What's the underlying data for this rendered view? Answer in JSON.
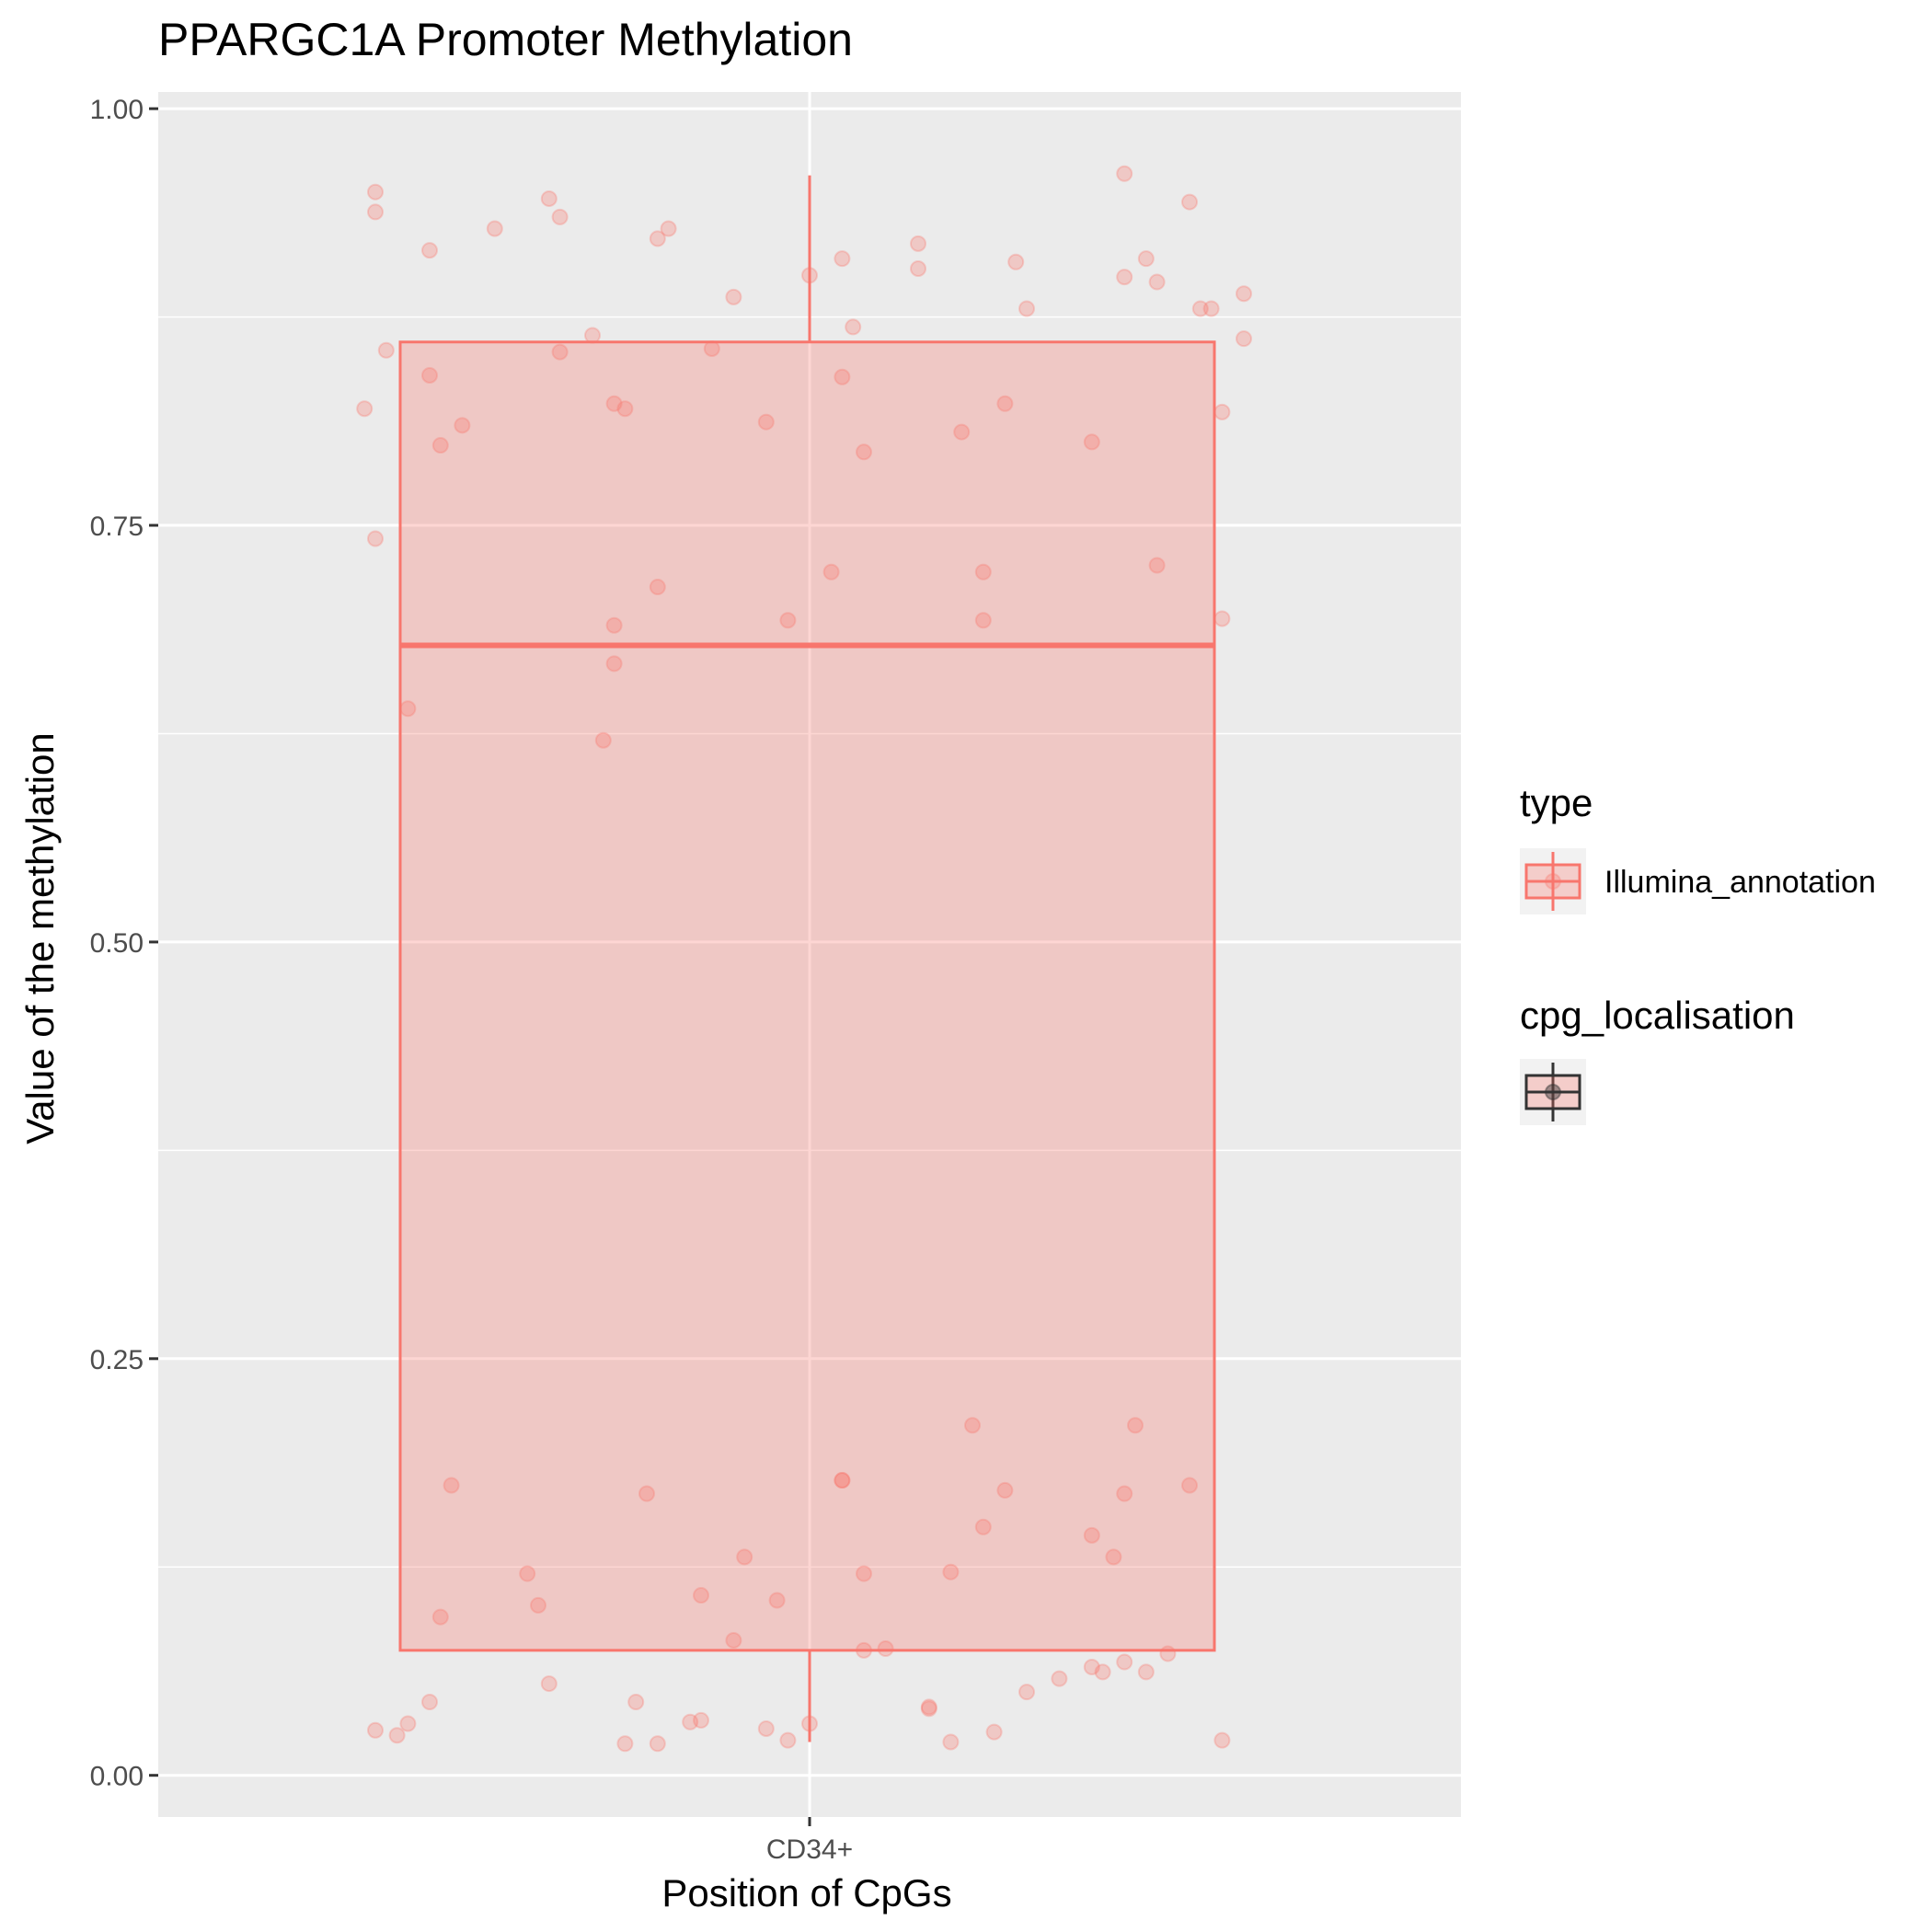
{
  "chart_data": {
    "type": "boxplot",
    "title": "PPARGC1A Promoter Methylation",
    "xlabel": "Position of CpGs",
    "ylabel": "Value of the methylation",
    "categories": [
      "CD34+"
    ],
    "ylim": [
      -0.025,
      1.01
    ],
    "yticks": [
      0.0,
      0.25,
      0.5,
      0.75,
      1.0
    ],
    "ytick_labels": [
      "0.00",
      "0.25",
      "0.50",
      "0.75",
      "1.00"
    ],
    "grid": true,
    "box": {
      "category": "CD34+",
      "whisker_low": 0.02,
      "q1": 0.075,
      "median": 0.678,
      "q3": 0.86,
      "whisker_high": 0.96,
      "color": "#F8766D",
      "fill": "#F8766D"
    },
    "points": [
      {
        "x": -0.4,
        "y": 0.95
      },
      {
        "x": -0.4,
        "y": 0.938
      },
      {
        "x": -0.35,
        "y": 0.915
      },
      {
        "x": -0.29,
        "y": 0.928
      },
      {
        "x": -0.24,
        "y": 0.946
      },
      {
        "x": -0.23,
        "y": 0.935
      },
      {
        "x": -0.14,
        "y": 0.922
      },
      {
        "x": -0.13,
        "y": 0.928
      },
      {
        "x": -0.07,
        "y": 0.887
      },
      {
        "x": 0.0,
        "y": 0.9
      },
      {
        "x": 0.03,
        "y": 0.91
      },
      {
        "x": 0.1,
        "y": 0.919
      },
      {
        "x": 0.1,
        "y": 0.904
      },
      {
        "x": 0.19,
        "y": 0.908
      },
      {
        "x": 0.29,
        "y": 0.899
      },
      {
        "x": 0.29,
        "y": 0.961
      },
      {
        "x": 0.31,
        "y": 0.91
      },
      {
        "x": 0.32,
        "y": 0.896
      },
      {
        "x": 0.35,
        "y": 0.944
      },
      {
        "x": 0.36,
        "y": 0.88
      },
      {
        "x": 0.37,
        "y": 0.88
      },
      {
        "x": 0.4,
        "y": 0.889
      },
      {
        "x": 0.4,
        "y": 0.862
      },
      {
        "x": 0.04,
        "y": 0.869
      },
      {
        "x": 0.2,
        "y": 0.88
      },
      {
        "x": -0.39,
        "y": 0.855
      },
      {
        "x": -0.23,
        "y": 0.854
      },
      {
        "x": -0.2,
        "y": 0.864
      },
      {
        "x": -0.09,
        "y": 0.856
      },
      {
        "x": -0.41,
        "y": 0.82
      },
      {
        "x": -0.35,
        "y": 0.84
      },
      {
        "x": -0.32,
        "y": 0.81
      },
      {
        "x": -0.34,
        "y": 0.798
      },
      {
        "x": -0.18,
        "y": 0.823
      },
      {
        "x": -0.17,
        "y": 0.82
      },
      {
        "x": -0.04,
        "y": 0.812
      },
      {
        "x": 0.03,
        "y": 0.839
      },
      {
        "x": 0.05,
        "y": 0.794
      },
      {
        "x": 0.14,
        "y": 0.806
      },
      {
        "x": 0.18,
        "y": 0.823
      },
      {
        "x": 0.26,
        "y": 0.8
      },
      {
        "x": 0.38,
        "y": 0.818
      },
      {
        "x": -0.4,
        "y": 0.742
      },
      {
        "x": -0.14,
        "y": 0.713
      },
      {
        "x": -0.18,
        "y": 0.69
      },
      {
        "x": -0.02,
        "y": 0.693
      },
      {
        "x": 0.02,
        "y": 0.722
      },
      {
        "x": 0.16,
        "y": 0.722
      },
      {
        "x": 0.16,
        "y": 0.693
      },
      {
        "x": 0.32,
        "y": 0.726
      },
      {
        "x": 0.38,
        "y": 0.694
      },
      {
        "x": -0.18,
        "y": 0.667
      },
      {
        "x": -0.37,
        "y": 0.64
      },
      {
        "x": -0.19,
        "y": 0.621
      },
      {
        "x": 0.15,
        "y": 0.21
      },
      {
        "x": 0.3,
        "y": 0.21
      },
      {
        "x": -0.33,
        "y": 0.174
      },
      {
        "x": -0.15,
        "y": 0.169
      },
      {
        "x": 0.03,
        "y": 0.177
      },
      {
        "x": 0.03,
        "y": 0.177
      },
      {
        "x": 0.18,
        "y": 0.171
      },
      {
        "x": 0.29,
        "y": 0.169
      },
      {
        "x": 0.35,
        "y": 0.174
      },
      {
        "x": 0.16,
        "y": 0.149
      },
      {
        "x": 0.26,
        "y": 0.144
      },
      {
        "x": 0.28,
        "y": 0.131
      },
      {
        "x": -0.06,
        "y": 0.131
      },
      {
        "x": -0.26,
        "y": 0.121
      },
      {
        "x": 0.05,
        "y": 0.121
      },
      {
        "x": 0.13,
        "y": 0.122
      },
      {
        "x": -0.1,
        "y": 0.108
      },
      {
        "x": -0.03,
        "y": 0.105
      },
      {
        "x": -0.25,
        "y": 0.102
      },
      {
        "x": -0.34,
        "y": 0.095
      },
      {
        "x": -0.07,
        "y": 0.081
      },
      {
        "x": 0.05,
        "y": 0.075
      },
      {
        "x": 0.07,
        "y": 0.076
      },
      {
        "x": 0.33,
        "y": 0.073
      },
      {
        "x": 0.26,
        "y": 0.065
      },
      {
        "x": 0.31,
        "y": 0.062
      },
      {
        "x": 0.27,
        "y": 0.062
      },
      {
        "x": 0.29,
        "y": 0.068
      },
      {
        "x": -0.24,
        "y": 0.055
      },
      {
        "x": 0.23,
        "y": 0.058
      },
      {
        "x": 0.2,
        "y": 0.05
      },
      {
        "x": -0.35,
        "y": 0.044
      },
      {
        "x": -0.16,
        "y": 0.044
      },
      {
        "x": 0.11,
        "y": 0.041
      },
      {
        "x": 0.11,
        "y": 0.04
      },
      {
        "x": -0.37,
        "y": 0.031
      },
      {
        "x": -0.4,
        "y": 0.027
      },
      {
        "x": -0.38,
        "y": 0.024
      },
      {
        "x": -0.11,
        "y": 0.032
      },
      {
        "x": -0.1,
        "y": 0.033
      },
      {
        "x": -0.04,
        "y": 0.028
      },
      {
        "x": 0.0,
        "y": 0.031
      },
      {
        "x": 0.17,
        "y": 0.026
      },
      {
        "x": -0.17,
        "y": 0.019
      },
      {
        "x": -0.14,
        "y": 0.019
      },
      {
        "x": -0.02,
        "y": 0.021
      },
      {
        "x": 0.13,
        "y": 0.02
      },
      {
        "x": 0.38,
        "y": 0.021
      }
    ],
    "legend": {
      "placement": "right",
      "groups": [
        {
          "title": "type",
          "entries": [
            {
              "label": "Illumina_annotation",
              "color": "#F8766D"
            }
          ]
        },
        {
          "title": "cpg_localisation",
          "entries": [
            {
              "label": "",
              "color": "#333333"
            }
          ]
        }
      ]
    },
    "colors": {
      "panel_bg": "#EBEBEB",
      "grid_major": "#FFFFFF",
      "box_stroke": "#F8766D",
      "point": "#F8766D",
      "axis_text": "#4D4D4D",
      "title_text": "#000000"
    }
  }
}
